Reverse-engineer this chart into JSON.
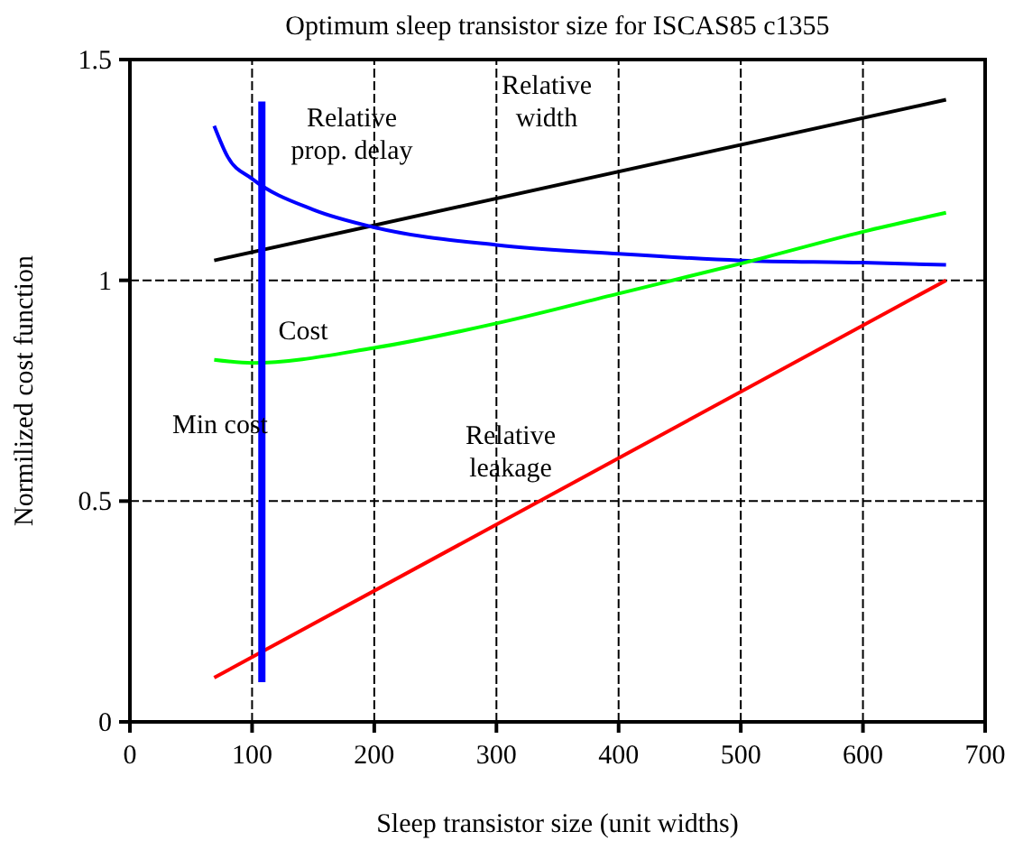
{
  "chart_data": {
    "type": "line",
    "title": "Optimum sleep transistor size for ISCAS85 c1355",
    "xlabel": "Sleep transistor size (unit widths)",
    "ylabel": "Normilized cost function",
    "xlim": [
      0,
      700
    ],
    "xticks": [
      0,
      100,
      200,
      300,
      400,
      500,
      600,
      700
    ],
    "ylim": [
      0,
      1.5
    ],
    "yticks": [
      0,
      0.5,
      1,
      1.5
    ],
    "grid": true,
    "marker": "none",
    "line_style": "solid",
    "series": [
      {
        "name": "Relative width",
        "color": "#000000",
        "x": [
          69,
          668
        ],
        "values": [
          1.045,
          1.409
        ]
      },
      {
        "name": "Relative prop. delay",
        "color": "#0000ff",
        "x": [
          69,
          80,
          100,
          150,
          200,
          300,
          400,
          500,
          600,
          668
        ],
        "values": [
          1.35,
          1.28,
          1.23,
          1.16,
          1.12,
          1.08,
          1.06,
          1.045,
          1.04,
          1.035
        ]
      },
      {
        "name": "Cost",
        "color": "#00ff00",
        "x": [
          69,
          100,
          200,
          304,
          400,
          503,
          600,
          668
        ],
        "values": [
          0.82,
          0.813,
          0.847,
          0.905,
          0.97,
          1.04,
          1.11,
          1.153
        ]
      },
      {
        "name": "Relative leakage",
        "color": "#ff0000",
        "x": [
          69,
          668
        ],
        "values": [
          0.1,
          1.0
        ]
      },
      {
        "name": "Min cost",
        "color": "#0000ff",
        "x": [
          108,
          108
        ],
        "values": [
          0.09,
          1.405
        ]
      }
    ]
  }
}
